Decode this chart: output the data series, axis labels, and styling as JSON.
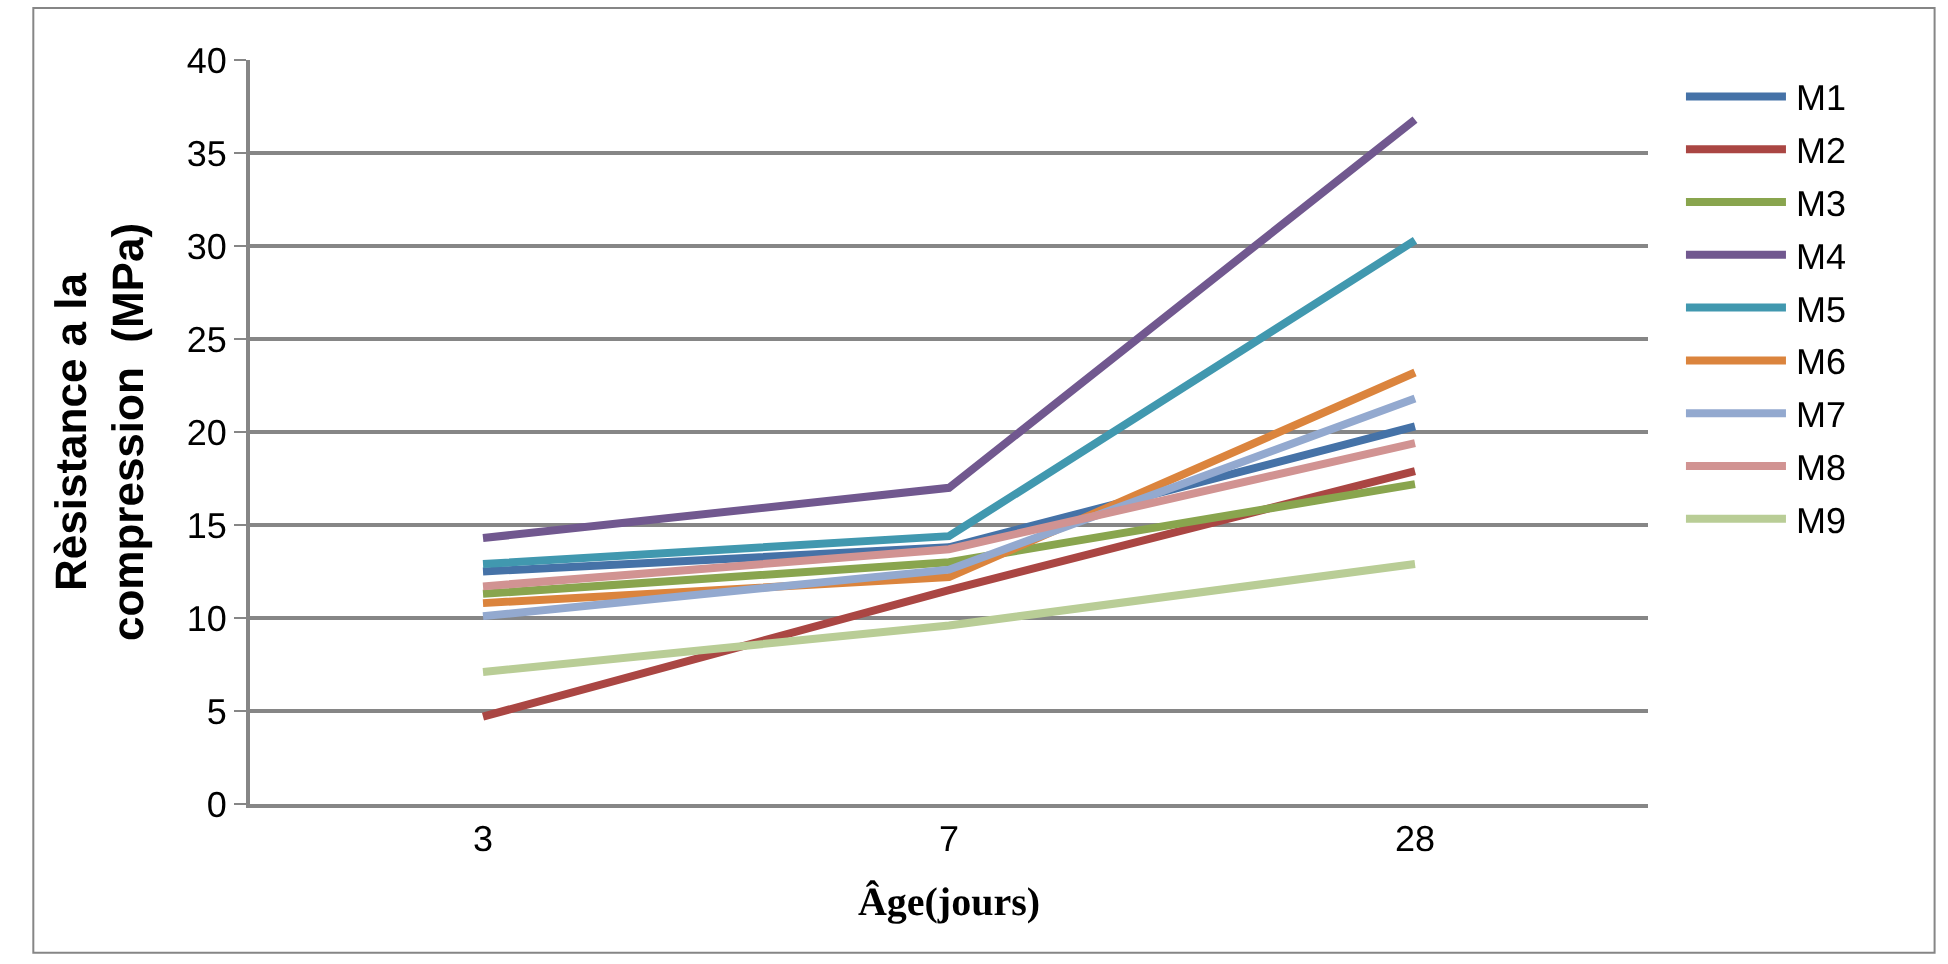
{
  "chart_data": {
    "type": "line",
    "xlabel": "Âge(jours)",
    "ylabel": "Rèsistance a la compression  (MPa)",
    "categories": [
      "3",
      "7",
      "28"
    ],
    "ylim": [
      0,
      40
    ],
    "yticks": [
      0,
      5,
      10,
      15,
      20,
      25,
      30,
      35,
      40
    ],
    "grid": "y",
    "legend": "right",
    "marker": "none",
    "line_style": "solid",
    "series": [
      {
        "name": "M1",
        "color": "#4572a7",
        "values": [
          12.5,
          13.8,
          20.3
        ]
      },
      {
        "name": "M2",
        "color": "#aa4643",
        "values": [
          4.7,
          11.5,
          17.9
        ]
      },
      {
        "name": "M3",
        "color": "#89a54e",
        "values": [
          11.3,
          13.0,
          17.2
        ]
      },
      {
        "name": "M4",
        "color": "#71588f",
        "values": [
          14.3,
          17.0,
          36.8
        ]
      },
      {
        "name": "M5",
        "color": "#4198af",
        "values": [
          12.9,
          14.4,
          30.3
        ]
      },
      {
        "name": "M6",
        "color": "#db843d",
        "values": [
          10.8,
          12.2,
          23.2
        ]
      },
      {
        "name": "M7",
        "color": "#93a9cf",
        "values": [
          10.1,
          12.6,
          21.8
        ]
      },
      {
        "name": "M8",
        "color": "#d19392",
        "values": [
          11.7,
          13.7,
          19.4
        ]
      },
      {
        "name": "M9",
        "color": "#b9cd96",
        "values": [
          7.1,
          9.6,
          12.9
        ]
      }
    ]
  }
}
